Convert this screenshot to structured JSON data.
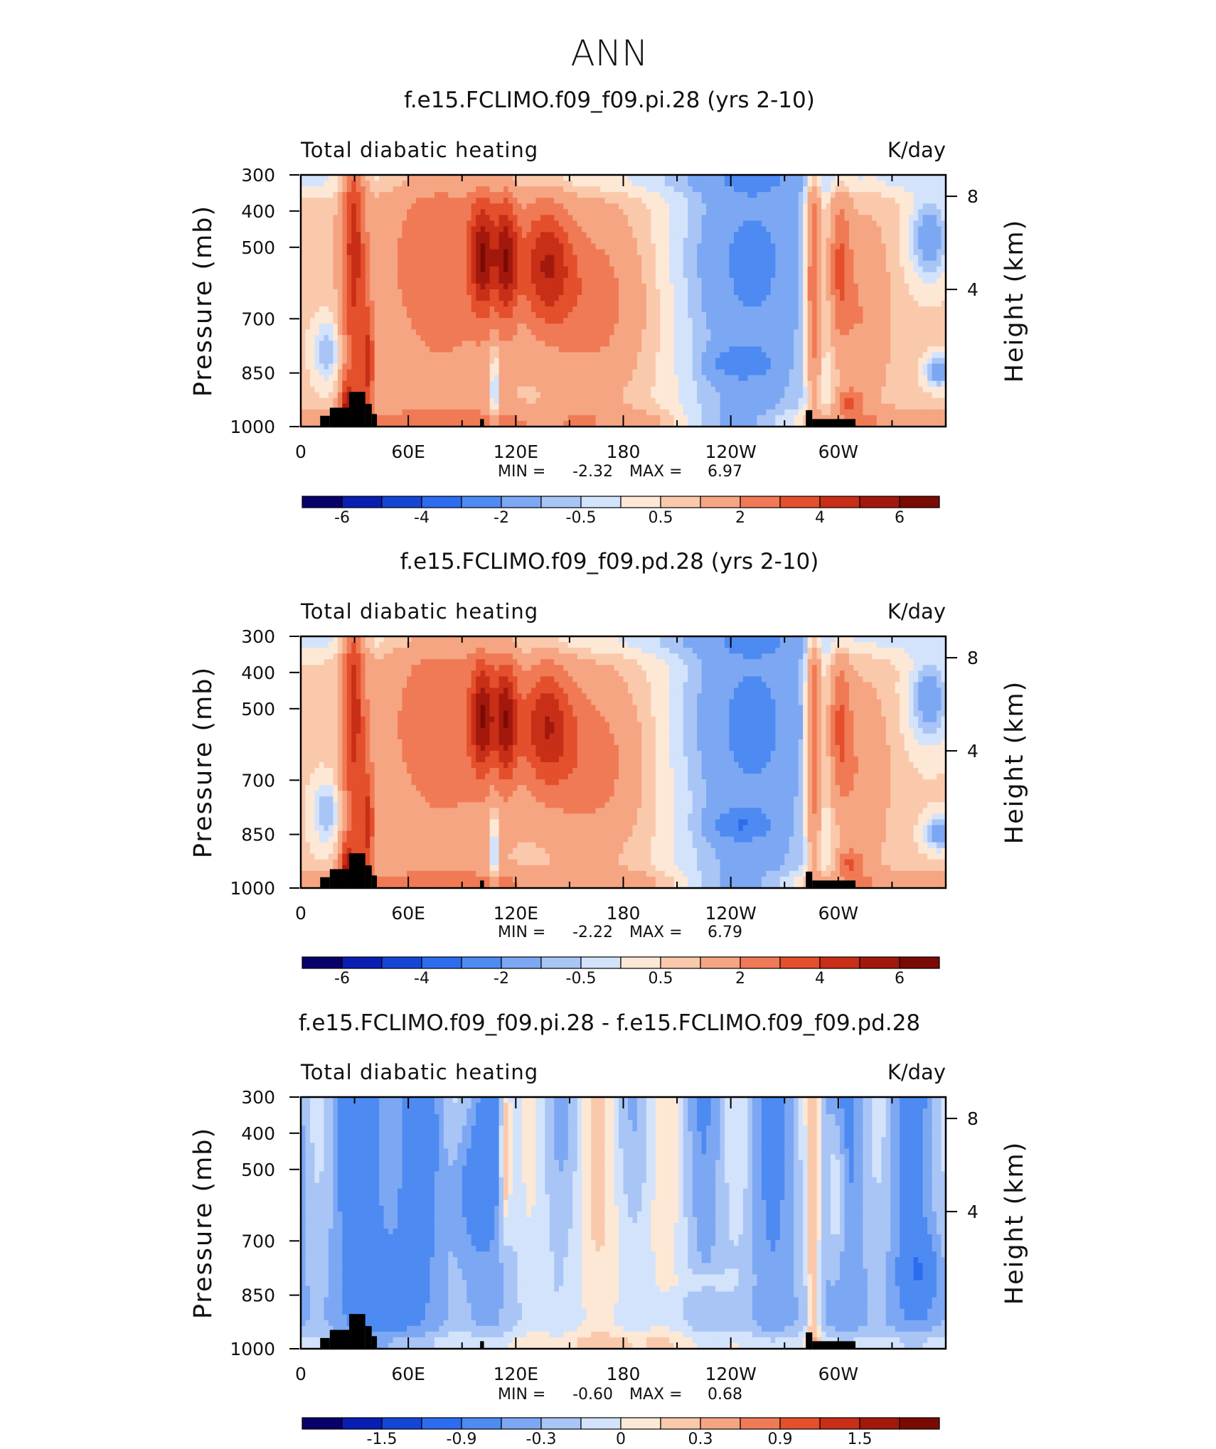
{
  "figure": {
    "title": "ANN"
  },
  "chart_data": [
    {
      "type": "heatmap",
      "title": "f.e15.FCLIMO.f09_f09.pi.28 (yrs 2-10)",
      "left_label": "Total diabatic heating",
      "right_label": "K/day",
      "ylabel": "Pressure (mb)",
      "ylabel2": "Height (km)",
      "x_ticks": [
        "0",
        "60E",
        "120E",
        "180",
        "120W",
        "60W"
      ],
      "y_ticks": [
        "300",
        "400",
        "500",
        "700",
        "850",
        "1000"
      ],
      "y2_ticks": [
        "8",
        "4"
      ],
      "stats": {
        "min_label": "MIN =",
        "min": "-2.32",
        "max_label": "MAX =",
        "max": "6.97"
      },
      "colorbar": {
        "labels": [
          "-6",
          "-4",
          "-2",
          "-0.5",
          "0.5",
          "2",
          "4",
          "6"
        ]
      }
    },
    {
      "type": "heatmap",
      "title": "f.e15.FCLIMO.f09_f09.pd.28 (yrs 2-10)",
      "left_label": "Total diabatic heating",
      "right_label": "K/day",
      "ylabel": "Pressure (mb)",
      "ylabel2": "Height (km)",
      "x_ticks": [
        "0",
        "60E",
        "120E",
        "180",
        "120W",
        "60W"
      ],
      "y_ticks": [
        "300",
        "400",
        "500",
        "700",
        "850",
        "1000"
      ],
      "y2_ticks": [
        "8",
        "4"
      ],
      "stats": {
        "min_label": "MIN =",
        "min": "-2.22",
        "max_label": "MAX =",
        "max": "6.79"
      },
      "colorbar": {
        "labels": [
          "-6",
          "-4",
          "-2",
          "-0.5",
          "0.5",
          "2",
          "4",
          "6"
        ]
      }
    },
    {
      "type": "heatmap",
      "title": "f.e15.FCLIMO.f09_f09.pi.28 - f.e15.FCLIMO.f09_f09.pd.28",
      "left_label": "Total diabatic heating",
      "right_label": "K/day",
      "ylabel": "Pressure (mb)",
      "ylabel2": "Height (km)",
      "x_ticks": [
        "0",
        "60E",
        "120E",
        "180",
        "120W",
        "60W"
      ],
      "y_ticks": [
        "300",
        "400",
        "500",
        "700",
        "850",
        "1000"
      ],
      "y2_ticks": [
        "8",
        "4"
      ],
      "stats": {
        "min_label": "MIN =",
        "min": "-0.60",
        "max_label": "MAX =",
        "max": "0.68"
      },
      "colorbar": {
        "labels": [
          "-1.5",
          "-0.9",
          "-0.3",
          "0",
          "0.3",
          "0.9",
          "1.5"
        ]
      }
    }
  ],
  "colors": {
    "scale": [
      "#08006b",
      "#0a1eb4",
      "#1446d6",
      "#2c6cef",
      "#4d8af2",
      "#7ca7f3",
      "#a9c5f6",
      "#d3e3fb",
      "#fde8d6",
      "#fac9ac",
      "#f6a582",
      "#f07a55",
      "#e44f2c",
      "#c92e17",
      "#a3180c",
      "#7a0a04"
    ],
    "land": "#000000"
  }
}
